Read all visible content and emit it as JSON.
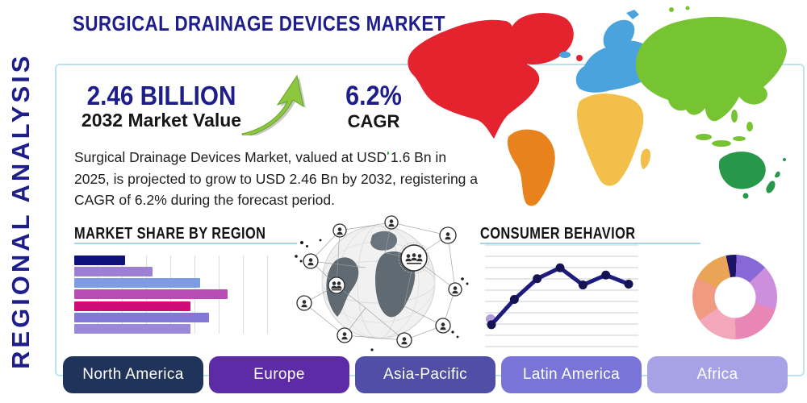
{
  "title": "SURGICAL DRAINAGE DEVICES MARKET",
  "vertical_label": "REGIONAL ANALYSIS",
  "stats": {
    "market_value": {
      "value": "2.46 BILLION",
      "label": "2032 Market Value"
    },
    "cagr": {
      "value": "6.2%",
      "label": "CAGR"
    }
  },
  "description": "Surgical Drainage Devices Market, valued at USD 1.6 Bn in 2025, is projected to grow to USD 2.46 Bn by 2032, registering a CAGR of 6.2% during the forecast period.",
  "sections": {
    "market_share_heading": "MARKET SHARE BY REGION",
    "consumer_heading": "CONSUMER BEHAVIOR"
  },
  "chart_data": [
    {
      "type": "bar",
      "title": "MARKET SHARE BY REGION",
      "orientation": "horizontal",
      "categories": [
        "",
        "",
        "",
        "",
        "",
        "",
        ""
      ],
      "values": [
        33,
        51,
        82,
        100,
        76,
        88,
        76
      ],
      "colors": [
        "#10107a",
        "#9d80d2",
        "#7e9ce4",
        "#b74cb4",
        "#ce0b77",
        "#8478d6",
        "#9c88d8"
      ],
      "xlim": [
        0,
        100
      ],
      "grid": true,
      "note": "unlabeled bars; values are relative lengths as % of longest bar"
    },
    {
      "type": "line",
      "title": "CONSUMER BEHAVIOR",
      "x": [
        1,
        2,
        3,
        4,
        5,
        6,
        7
      ],
      "values": [
        18,
        46,
        69,
        81,
        62,
        73,
        63
      ],
      "ylim": [
        0,
        100
      ],
      "line_color": "#1e1b7e",
      "marker_color": "#161353",
      "first_point_halo_color": "#b39bdc",
      "grid": true,
      "legend": "none",
      "note": "unlabeled axes; values estimated from gridlines"
    },
    {
      "type": "pie",
      "subtype": "donut",
      "values": [
        4,
        12,
        17,
        20,
        16,
        17,
        14
      ],
      "colors": [
        "#1b1464",
        "#8668d6",
        "#cd8ede",
        "#e886b6",
        "#f4a6ba",
        "#f09a82",
        "#e9a455"
      ],
      "start_angle_deg": -12,
      "note": "unlabeled donut, segments clockwise from top"
    }
  ],
  "map": {
    "name": "world-map",
    "regions": [
      {
        "name": "north-america",
        "color": "#e4232f"
      },
      {
        "name": "south-america",
        "color": "#e8821d"
      },
      {
        "name": "europe",
        "color": "#4aa3dc"
      },
      {
        "name": "africa",
        "color": "#f2c04a"
      },
      {
        "name": "asia",
        "color": "#77c433"
      },
      {
        "name": "oceania",
        "color": "#27984a"
      }
    ]
  },
  "buttons": [
    {
      "label": "North America",
      "color": "#20345b"
    },
    {
      "label": "Europe",
      "color": "#5e2ba7"
    },
    {
      "label": "Asia-Pacific",
      "color": "#504ea6"
    },
    {
      "label": "Latin America",
      "color": "#7874d8"
    },
    {
      "label": "Africa",
      "color": "#a7a2e6"
    }
  ],
  "theme": {
    "navy": "#1d1d8c",
    "rule_blue": "#a9d4ea",
    "box_border_blue": "#bfe2f2",
    "arrow_green": "#8dc63f",
    "arrow_green_dark": "#64a32b",
    "grid_gray": "#c9ced6"
  }
}
